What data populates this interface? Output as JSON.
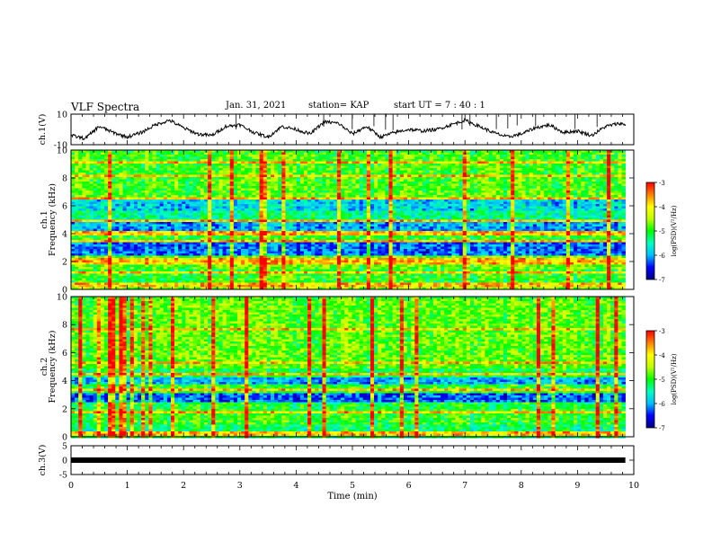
{
  "header": {
    "title": "VLF Spectra",
    "date": "Jan. 31, 2021",
    "station": "station= KAP",
    "start": "start  UT  =   7 : 40 : 1"
  },
  "chart_data": [
    {
      "type": "line",
      "id": "ch1-waveform",
      "ylabel": "ch.1(V)",
      "ylim": [
        -10,
        10
      ],
      "yticks": [
        10,
        -10
      ],
      "x": [
        0,
        0.25,
        0.5,
        0.75,
        1.0,
        1.25,
        1.5,
        1.75,
        2.0,
        2.25,
        2.5,
        2.75,
        3.0,
        3.25,
        3.5,
        3.75,
        4.0,
        4.25,
        4.5,
        4.75,
        5.0,
        5.25,
        5.5,
        5.75,
        6.0,
        6.25,
        6.5,
        6.75,
        7.0,
        7.25,
        7.5,
        7.75,
        8.0,
        8.25,
        8.5,
        8.75,
        9.0,
        9.25,
        9.5,
        9.75,
        9.85
      ],
      "y": [
        -4,
        -6,
        2,
        -2,
        -5,
        -2,
        3,
        6,
        1,
        -3,
        -4,
        2,
        3,
        -2,
        -5,
        2,
        0,
        -3,
        5,
        4,
        -3,
        2,
        -5,
        -2,
        0,
        -1,
        0,
        3,
        6,
        2,
        -2,
        -5,
        -3,
        1,
        3,
        -2,
        -1,
        -4,
        2,
        4,
        3
      ]
    },
    {
      "type": "heatmap",
      "id": "ch1-spectrogram",
      "ylabel": "Frequency  (kHz)",
      "channel": "ch.1",
      "ylim": [
        0,
        10
      ],
      "yticks": [
        0,
        2,
        4,
        6,
        8,
        10
      ],
      "bands": [
        {
          "from": 0,
          "to": 0.5,
          "level": -4.6
        },
        {
          "from": 0.5,
          "to": 1.5,
          "level": -5.0
        },
        {
          "from": 1.5,
          "to": 2.5,
          "level": -4.8
        },
        {
          "from": 2.5,
          "to": 3.5,
          "level": -6.2
        },
        {
          "from": 3.5,
          "to": 4.0,
          "level": -5.0
        },
        {
          "from": 4.0,
          "to": 5.0,
          "level": -6.0
        },
        {
          "from": 5.0,
          "to": 5.8,
          "level": -5.4
        },
        {
          "from": 5.8,
          "to": 6.5,
          "level": -5.8
        },
        {
          "from": 6.5,
          "to": 7.0,
          "level": -4.8
        },
        {
          "from": 7.0,
          "to": 10.0,
          "level": -4.9
        }
      ],
      "lines_khz": [
        0.4,
        1.3,
        2.0,
        2.3,
        3.6,
        4.1,
        5.0,
        6.6,
        8.2,
        9.2
      ]
    },
    {
      "type": "heatmap",
      "id": "ch2-spectrogram",
      "ylabel": "Frequency  (kHz)",
      "channel": "ch.2",
      "ylim": [
        0,
        10
      ],
      "yticks": [
        0,
        2,
        4,
        6,
        8,
        10
      ],
      "bands": [
        {
          "from": 0,
          "to": 1.0,
          "level": -5.3
        },
        {
          "from": 1.0,
          "to": 2.0,
          "level": -5.0
        },
        {
          "from": 2.0,
          "to": 2.5,
          "level": -5.1
        },
        {
          "from": 2.5,
          "to": 3.2,
          "level": -6.3
        },
        {
          "from": 3.2,
          "to": 3.8,
          "level": -5.0
        },
        {
          "from": 3.8,
          "to": 4.3,
          "level": -6.0
        },
        {
          "from": 4.3,
          "to": 5.0,
          "level": -5.2
        },
        {
          "from": 5.0,
          "to": 10.0,
          "level": -4.8
        }
      ],
      "lines_khz": [
        0.3,
        1.8,
        3.4,
        4.5,
        5.4,
        7.8
      ]
    },
    {
      "type": "line",
      "id": "ch3-waveform",
      "ylabel": "ch.3(V)",
      "ylim": [
        -5,
        5
      ],
      "yticks": [
        5,
        0,
        -5
      ],
      "x": [
        0,
        9.85
      ],
      "y": [
        0,
        0
      ]
    }
  ],
  "x_axis": {
    "label": "Time  (min)",
    "ticks": [
      0,
      1,
      2,
      3,
      4,
      5,
      6,
      7,
      8,
      9,
      10
    ],
    "xlim": [
      0,
      10
    ],
    "data_end": 9.85
  },
  "colorbar": {
    "label": "log(PSD)(V²/Hz)",
    "range": [
      -7,
      -3
    ],
    "ticks": [
      -3,
      -4,
      -5,
      -6,
      -7
    ],
    "colors": [
      "#000080",
      "#0000ff",
      "#00bfff",
      "#00ffbf",
      "#00ff00",
      "#bfff00",
      "#ffff00",
      "#ff8000",
      "#ff0000",
      "#ffffff"
    ]
  }
}
